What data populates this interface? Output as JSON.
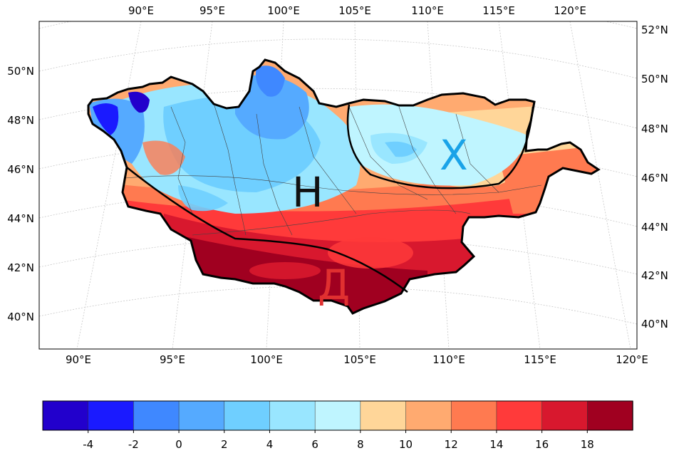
{
  "map": {
    "top_lon_labels": [
      "90°E",
      "95°E",
      "100°E",
      "105°E",
      "110°E",
      "115°E",
      "120°E"
    ],
    "bottom_lon_labels": [
      "90°E",
      "95°E",
      "100°E",
      "105°E",
      "110°E",
      "115°E",
      "120°E"
    ],
    "left_lat_labels": [
      "50°N",
      "48°N",
      "46°N",
      "44°N",
      "42°N",
      "40°N"
    ],
    "right_lat_labels": [
      "52°N",
      "50°N",
      "48°N",
      "46°N",
      "44°N",
      "42°N",
      "40°N"
    ],
    "zone_labels": {
      "h": {
        "text": "H",
        "color": "#111111"
      },
      "x": {
        "text": "X",
        "color": "#1aa3e8"
      },
      "d": {
        "text": "Д",
        "color": "#e03030"
      }
    }
  },
  "colorbar": {
    "colors": [
      "#2200cc",
      "#1a1aff",
      "#3f88ff",
      "#55aaff",
      "#6fcfff",
      "#99e6ff",
      "#bff5ff",
      "#ffd699",
      "#ffaa70",
      "#ff7a50",
      "#ff3a3a",
      "#d8182e",
      "#a00020"
    ],
    "tick_labels": [
      "-4",
      "-2",
      "0",
      "2",
      "4",
      "6",
      "8",
      "10",
      "12",
      "14",
      "16",
      "18"
    ]
  }
}
